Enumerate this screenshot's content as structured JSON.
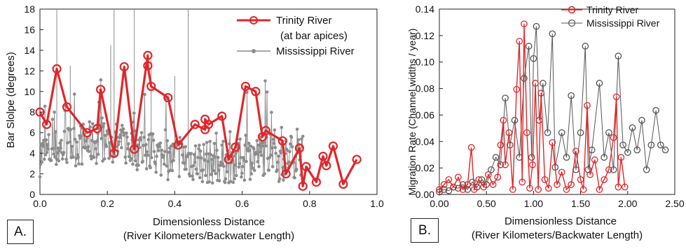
{
  "colors": {
    "trinity": "#e0262a",
    "mississippi": "#8c8c8c",
    "axis": "#222222"
  },
  "chart_data": [
    {
      "type": "line",
      "panel_label": "A.",
      "xlabel": "Dimensionless Distance",
      "xlabel2": "(River Kilometers/Backwater Length)",
      "ylabel": "Bar Slolpe (degrees)",
      "xlim": [
        0.0,
        1.0
      ],
      "ylim": [
        0,
        18
      ],
      "x_ticks": [
        "0.0",
        "0.2",
        "0.4",
        "0.6",
        "0.8",
        "1.0"
      ],
      "y_ticks": [
        "0",
        "2",
        "4",
        "6",
        "8",
        "10",
        "12",
        "14",
        "16",
        "18"
      ],
      "legend": {
        "position": "top-right",
        "entries": [
          "Trinity River",
          "(at bar apices)",
          "Mississippi River"
        ]
      },
      "series": [
        {
          "name": "Trinity River",
          "marker": "open-circle",
          "x": [
            0.0,
            0.02,
            0.05,
            0.08,
            0.14,
            0.17,
            0.18,
            0.22,
            0.25,
            0.28,
            0.32,
            0.32,
            0.33,
            0.38,
            0.41,
            0.46,
            0.49,
            0.49,
            0.5,
            0.54,
            0.56,
            0.58,
            0.61,
            0.64,
            0.66,
            0.67,
            0.72,
            0.73,
            0.77,
            0.78,
            0.79,
            0.82,
            0.84,
            0.85,
            0.87,
            0.9,
            0.94
          ],
          "y": [
            8.0,
            6.8,
            12.2,
            8.5,
            6.0,
            6.4,
            10.2,
            4.0,
            12.4,
            4.4,
            13.5,
            12.5,
            10.5,
            9.4,
            4.8,
            6.8,
            6.3,
            7.3,
            6.8,
            7.6,
            3.4,
            4.6,
            10.5,
            10.0,
            5.6,
            6.2,
            5.2,
            2.0,
            4.5,
            0.8,
            2.7,
            1.2,
            3.7,
            2.8,
            4.7,
            1.0,
            3.4
          ]
        },
        {
          "name": "Mississippi River",
          "marker": "small-dot",
          "x_range": [
            0.0,
            0.78
          ],
          "spikes": [
            [
              0.05,
              18
            ],
            [
              0.17,
              4
            ],
            [
              0.22,
              18
            ],
            [
              0.28,
              18
            ],
            [
              0.44,
              18
            ],
            [
              0.21,
              14.5
            ],
            [
              0.09,
              12.5
            ],
            [
              0.33,
              13
            ],
            [
              0.4,
              11.5
            ]
          ]
        }
      ]
    },
    {
      "type": "line",
      "panel_label": "B.",
      "xlabel": "Dimensionless Distance",
      "xlabel2": "(River Kilometers/Backwater Length)",
      "ylabel": "Migration Rate (Channel widths / year)",
      "xlim": [
        0.0,
        2.5
      ],
      "ylim": [
        0.0,
        0.15
      ],
      "x_ticks": [
        "0.00",
        "0.50",
        "1.00",
        "1.50",
        "2.00",
        "2.50"
      ],
      "y_ticks": [
        "0.00",
        "0.02",
        "0.04",
        "0.06",
        "0.08",
        "0.10",
        "0.12",
        "0.14"
      ],
      "legend": {
        "position": "top-right",
        "entries": [
          "Trinity River",
          "Mississippi River"
        ]
      },
      "series": [
        {
          "name": "Trinity River",
          "marker": "open-circle",
          "x": [
            0.0,
            0.05,
            0.1,
            0.15,
            0.2,
            0.25,
            0.3,
            0.34,
            0.37,
            0.42,
            0.47,
            0.52,
            0.57,
            0.62,
            0.65,
            0.68,
            0.7,
            0.74,
            0.78,
            0.82,
            0.85,
            0.88,
            0.9,
            0.93,
            0.96,
            0.99,
            1.02,
            1.05,
            1.08,
            1.12,
            1.16,
            1.2,
            1.25,
            1.3,
            1.35,
            1.4,
            1.45,
            1.5,
            1.53,
            1.57,
            1.6,
            1.65,
            1.7,
            1.75,
            1.8,
            1.85,
            1.88,
            1.9,
            1.93,
            1.97
          ],
          "y": [
            0.004,
            0.008,
            0.012,
            0.006,
            0.014,
            0.004,
            0.008,
            0.038,
            0.004,
            0.012,
            0.006,
            0.016,
            0.008,
            0.014,
            0.04,
            0.06,
            0.024,
            0.05,
            0.004,
            0.085,
            0.124,
            0.01,
            0.138,
            0.05,
            0.005,
            0.024,
            0.09,
            0.004,
            0.082,
            0.012,
            0.005,
            0.042,
            0.008,
            0.018,
            0.004,
            0.008,
            0.035,
            0.012,
            0.004,
            0.072,
            0.016,
            0.028,
            0.004,
            0.012,
            0.02,
            0.046,
            0.079,
            0.006,
            0.03,
            0.006
          ]
        },
        {
          "name": "Mississippi River",
          "marker": "open-circle",
          "x": [
            0.0,
            0.05,
            0.1,
            0.15,
            0.2,
            0.25,
            0.3,
            0.35,
            0.4,
            0.45,
            0.5,
            0.55,
            0.6,
            0.65,
            0.7,
            0.75,
            0.8,
            0.85,
            0.9,
            0.95,
            0.98,
            1.0,
            1.03,
            1.06,
            1.1,
            1.15,
            1.2,
            1.23,
            1.3,
            1.35,
            1.4,
            1.45,
            1.5,
            1.55,
            1.58,
            1.62,
            1.7,
            1.75,
            1.8,
            1.85,
            1.9,
            1.95,
            2.0,
            2.05,
            2.1,
            2.15,
            2.2,
            2.25,
            2.3,
            2.35,
            2.4
          ],
          "y": [
            0.002,
            0.004,
            0.003,
            0.006,
            0.005,
            0.008,
            0.004,
            0.01,
            0.006,
            0.012,
            0.008,
            0.02,
            0.03,
            0.024,
            0.078,
            0.04,
            0.06,
            0.03,
            0.094,
            0.12,
            0.03,
            0.11,
            0.136,
            0.06,
            0.09,
            0.05,
            0.13,
            0.022,
            0.05,
            0.03,
            0.08,
            0.02,
            0.05,
            0.12,
            0.02,
            0.036,
            0.09,
            0.03,
            0.05,
            0.02,
            0.112,
            0.04,
            0.034,
            0.054,
            0.036,
            0.06,
            0.02,
            0.04,
            0.068,
            0.04,
            0.036
          ]
        }
      ]
    }
  ]
}
